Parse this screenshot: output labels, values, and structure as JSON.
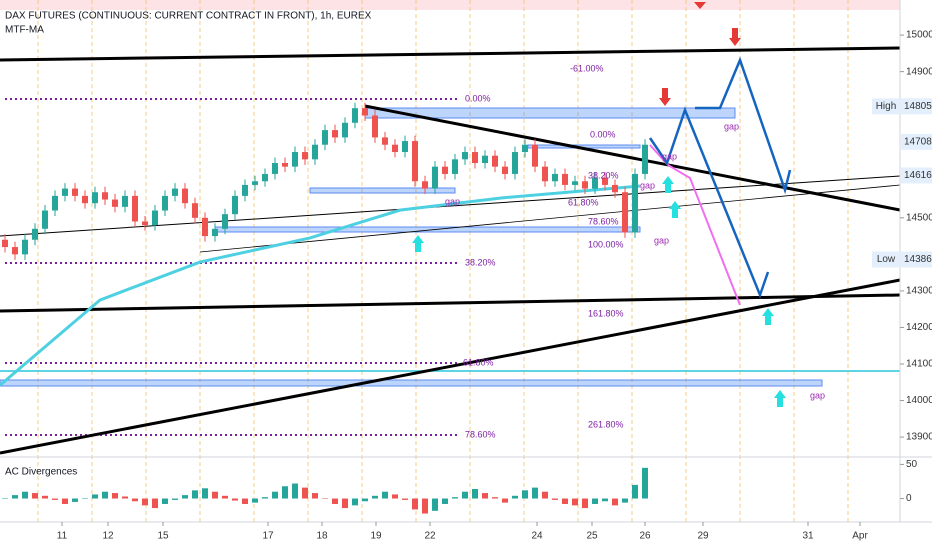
{
  "chart_data": {
    "type": "candlestick",
    "title": "DAX FUTURES (CONTINUOUS: CURRENT CONTRACT IN FRONT), 1h, EUREX",
    "indicator": "MTF-MA",
    "candles": [
      [
        14440,
        14455,
        14405,
        14420
      ],
      [
        14420,
        14435,
        14385,
        14400
      ],
      [
        14400,
        14455,
        14385,
        14440
      ],
      [
        14440,
        14485,
        14425,
        14470
      ],
      [
        14470,
        14535,
        14455,
        14520
      ],
      [
        14520,
        14575,
        14505,
        14560
      ],
      [
        14560,
        14595,
        14545,
        14580
      ],
      [
        14580,
        14595,
        14545,
        14560
      ],
      [
        14560,
        14575,
        14525,
        14540
      ],
      [
        14540,
        14585,
        14525,
        14570
      ],
      [
        14570,
        14585,
        14535,
        14550
      ],
      [
        14550,
        14565,
        14515,
        14530
      ],
      [
        14530,
        14575,
        14515,
        14560
      ],
      [
        14560,
        14575,
        14475,
        14490
      ],
      [
        14490,
        14505,
        14465,
        14480
      ],
      [
        14480,
        14535,
        14465,
        14520
      ],
      [
        14520,
        14575,
        14505,
        14560
      ],
      [
        14560,
        14595,
        14545,
        14580
      ],
      [
        14580,
        14595,
        14525,
        14540
      ],
      [
        14540,
        14555,
        14485,
        14500
      ],
      [
        14500,
        14515,
        14435,
        14450
      ],
      [
        14450,
        14485,
        14435,
        14470
      ],
      [
        14470,
        14525,
        14455,
        14510
      ],
      [
        14510,
        14575,
        14495,
        14560
      ],
      [
        14560,
        14605,
        14545,
        14590
      ],
      [
        14590,
        14615,
        14575,
        14600
      ],
      [
        14600,
        14635,
        14585,
        14620
      ],
      [
        14620,
        14665,
        14605,
        14650
      ],
      [
        14650,
        14665,
        14625,
        14640
      ],
      [
        14640,
        14695,
        14625,
        14680
      ],
      [
        14680,
        14695,
        14645,
        14660
      ],
      [
        14660,
        14715,
        14645,
        14700
      ],
      [
        14700,
        14755,
        14685,
        14740
      ],
      [
        14740,
        14755,
        14705,
        14720
      ],
      [
        14720,
        14775,
        14705,
        14760
      ],
      [
        14760,
        14815,
        14745,
        14800
      ],
      [
        14800,
        14815,
        14765,
        14780
      ],
      [
        14780,
        14795,
        14705,
        14720
      ],
      [
        14720,
        14735,
        14685,
        14700
      ],
      [
        14700,
        14715,
        14665,
        14680
      ],
      [
        14680,
        14725,
        14665,
        14710
      ],
      [
        14710,
        14725,
        14585,
        14600
      ],
      [
        14600,
        14615,
        14565,
        14580
      ],
      [
        14580,
        14655,
        14565,
        14640
      ],
      [
        14640,
        14655,
        14605,
        14620
      ],
      [
        14620,
        14675,
        14605,
        14660
      ],
      [
        14660,
        14695,
        14645,
        14680
      ],
      [
        14680,
        14695,
        14635,
        14650
      ],
      [
        14650,
        14685,
        14635,
        14670
      ],
      [
        14670,
        14685,
        14625,
        14640
      ],
      [
        14640,
        14655,
        14605,
        14620
      ],
      [
        14620,
        14695,
        14605,
        14680
      ],
      [
        14680,
        14715,
        14665,
        14700
      ],
      [
        14700,
        14715,
        14625,
        14640
      ],
      [
        14640,
        14655,
        14585,
        14600
      ],
      [
        14600,
        14635,
        14585,
        14620
      ],
      [
        14620,
        14635,
        14575,
        14590
      ],
      [
        14590,
        14615,
        14575,
        14600
      ],
      [
        14600,
        14615,
        14565,
        14580
      ],
      [
        14580,
        14625,
        14565,
        14610
      ],
      [
        14610,
        14625,
        14575,
        14590
      ],
      [
        14590,
        14605,
        14555,
        14570
      ],
      [
        14570,
        14585,
        14445,
        14460
      ],
      [
        14460,
        14635,
        14445,
        14620
      ],
      [
        14620,
        14715,
        14605,
        14700
      ]
    ],
    "colors": {
      "up": "#26a69a",
      "down": "#ef5350"
    },
    "ma": {
      "name": "MTF-MA",
      "color": "#4dd0e1",
      "x": [
        0,
        10,
        20,
        31,
        40,
        50,
        64
      ],
      "values": [
        14042,
        14275,
        14379,
        14445,
        14521,
        14554,
        14587
      ]
    },
    "xlim": [
      0,
      90
    ],
    "xticks": [
      {
        "value": 6.2,
        "label": "11"
      },
      {
        "value": 10.8,
        "label": "12"
      },
      {
        "value": 16.3,
        "label": "15"
      },
      {
        "value": 26.8,
        "label": "17"
      },
      {
        "value": 32.2,
        "label": "18"
      },
      {
        "value": 37.6,
        "label": "19"
      },
      {
        "value": 43,
        "label": "22"
      },
      {
        "value": 53.7,
        "label": "24"
      },
      {
        "value": 59.2,
        "label": "25"
      },
      {
        "value": 64.5,
        "label": "26"
      },
      {
        "value": 70.3,
        "label": "29"
      },
      {
        "value": 80.8,
        "label": "31"
      },
      {
        "value": 86,
        "label": "Apr"
      }
    ],
    "ylim": [
      13851,
      15096
    ],
    "yticks": [
      15000,
      14900,
      14500,
      14300,
      14200,
      14100,
      14000,
      13900
    ],
    "price_labels": [
      {
        "label": "High",
        "value": 14805
      },
      {
        "value": 14708
      },
      {
        "value": 14616
      },
      {
        "label": "Low",
        "value": 14386
      }
    ],
    "fib_labels": [
      "-61.00%",
      "0.00%",
      "0.00%",
      "38.20%",
      "61.80%",
      "78.60%",
      "100.00%",
      "38.20%",
      "161.80%",
      "61.80%",
      "261.80%",
      "78.60%"
    ],
    "gap_labels": [
      "gap",
      "gap",
      "gap",
      "gap",
      "gap",
      "gap"
    ],
    "oscillator": {
      "name": "AC Divergences",
      "values": [
        0,
        5,
        10,
        8,
        4,
        -2,
        -8,
        -5,
        0,
        6,
        10,
        8,
        3,
        -4,
        -10,
        -14,
        -8,
        -2,
        5,
        12,
        15,
        10,
        4,
        -3,
        -8,
        -6,
        2,
        10,
        18,
        22,
        16,
        8,
        0,
        -8,
        -14,
        -10,
        -4,
        4,
        10,
        6,
        -2,
        -16,
        -22,
        -18,
        -8,
        2,
        10,
        14,
        8,
        2,
        -6,
        4,
        12,
        16,
        10,
        -2,
        -8,
        -10,
        -14,
        -8,
        -4,
        -10,
        -6,
        20,
        45
      ],
      "ylim": [
        -34.4,
        59.4
      ],
      "yticks": [
        50,
        0
      ]
    }
  }
}
